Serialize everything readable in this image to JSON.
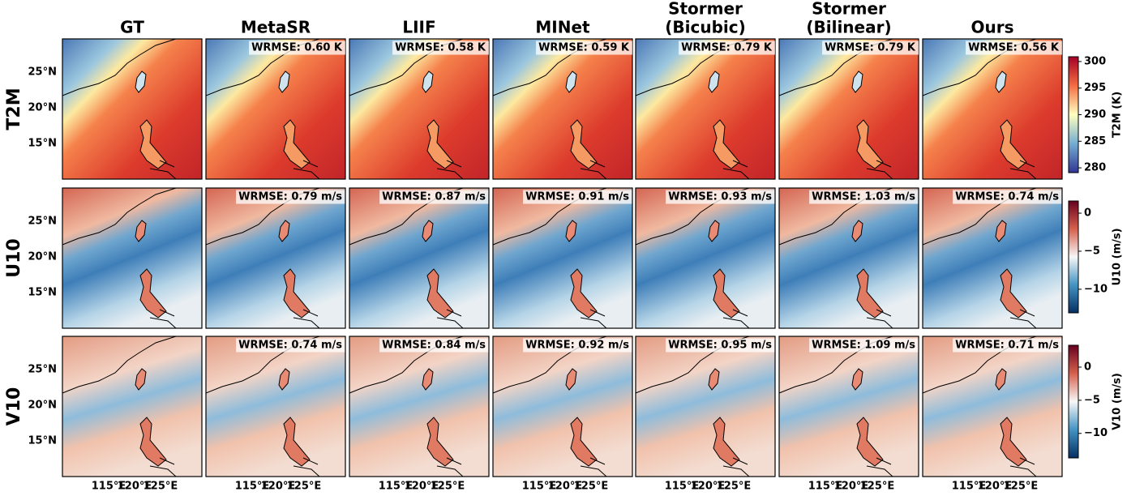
{
  "columns": [
    [
      "GT"
    ],
    [
      "MetaSR"
    ],
    [
      "LIIF"
    ],
    [
      "MINet"
    ],
    [
      "Stormer",
      "(Bicubic)"
    ],
    [
      "Stormer",
      "(Bilinear)"
    ],
    [
      "Ours"
    ]
  ],
  "rows": [
    {
      "label": "T2M",
      "wrmse": [
        "WRMSE: 0.60 K",
        "WRMSE: 0.58 K",
        "WRMSE: 0.59 K",
        "WRMSE: 0.79 K",
        "WRMSE: 0.79 K",
        "WRMSE: 0.56 K"
      ],
      "colorbar": {
        "label": "T2M (K)",
        "lim": [
          279.1,
          300.9
        ],
        "ticks": [
          280,
          285,
          290,
          295,
          300
        ]
      }
    },
    {
      "label": "U10",
      "wrmse": [
        "WRMSE: 0.79 m/s",
        "WRMSE: 0.87 m/s",
        "WRMSE: 0.91 m/s",
        "WRMSE: 0.93 m/s",
        "WRMSE: 1.03 m/s",
        "WRMSE: 0.74 m/s"
      ],
      "colorbar": {
        "label": "U10 (m/s)",
        "lim": [
          -13.1,
          1.6
        ],
        "ticks": [
          0,
          {
            "value": -5,
            "label": "−5"
          },
          {
            "value": -10,
            "label": "−10"
          }
        ]
      }
    },
    {
      "label": "V10",
      "wrmse": [
        "WRMSE: 0.74 m/s",
        "WRMSE: 0.84 m/s",
        "WRMSE: 0.92 m/s",
        "WRMSE: 0.95 m/s",
        "WRMSE: 1.09 m/s",
        "WRMSE: 0.71 m/s"
      ],
      "colorbar": {
        "label": "V10 (m/s)",
        "lim": [
          -13.7,
          3.3
        ],
        "ticks": [
          0,
          {
            "value": -5,
            "label": "−5"
          },
          {
            "value": -10,
            "label": "−10"
          }
        ]
      }
    }
  ],
  "lat_ticks": [
    "25°N",
    "20°N",
    "15°N"
  ],
  "lon_ticks": [
    "115°E",
    "120°E",
    "125°E"
  ]
}
